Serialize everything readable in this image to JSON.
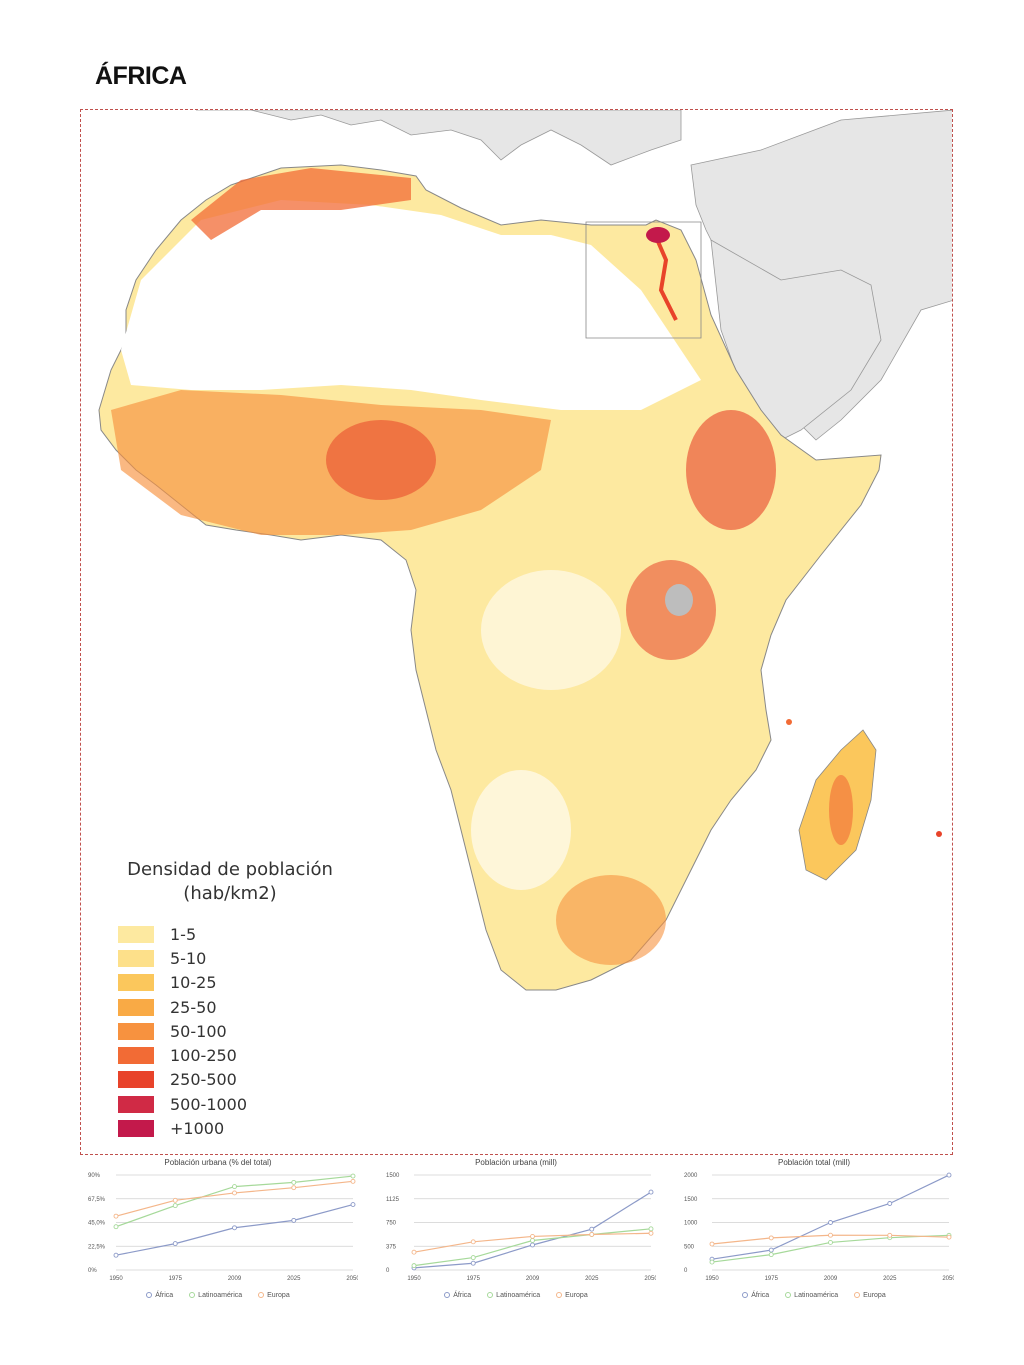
{
  "title": "ÁFRICA",
  "legend": {
    "title_line1": "Densidad de población",
    "title_line2": "(hab/km2)",
    "items": [
      {
        "label": "1-5",
        "color": "#fde9a0"
      },
      {
        "label": "5-10",
        "color": "#fde08a"
      },
      {
        "label": "10-25",
        "color": "#fbc75c"
      },
      {
        "label": "25-50",
        "color": "#f9aa45"
      },
      {
        "label": "50-100",
        "color": "#f7923f"
      },
      {
        "label": "100-250",
        "color": "#f26b35"
      },
      {
        "label": "250-500",
        "color": "#e8432a"
      },
      {
        "label": "500-1000",
        "color": "#d02a45"
      },
      {
        "label": "+1000",
        "color": "#c3194b"
      }
    ]
  },
  "colors": {
    "frame": "#c0504d",
    "land_other": "#e6e6e6",
    "series_africa": "#8c9ac8",
    "series_latam": "#a6d99a",
    "series_europa": "#f4b68a"
  },
  "charts": [
    {
      "title": "Población urbana (% del total)",
      "legend": [
        "África",
        "Latinoamérica",
        "Europa"
      ],
      "chart_data": {
        "type": "line",
        "x": [
          "1950",
          "1975",
          "2009",
          "2025",
          "2050"
        ],
        "y_ticks": [
          "0%",
          "22,5%",
          "45,0%",
          "67,5%",
          "90%"
        ],
        "ylim": [
          0,
          90
        ],
        "series": [
          {
            "name": "África",
            "values": [
              14,
              25,
              40,
              47,
              62
            ]
          },
          {
            "name": "Latinoamérica",
            "values": [
              41,
              61,
              79,
              83,
              89
            ]
          },
          {
            "name": "Europa",
            "values": [
              51,
              66,
              73,
              78,
              84
            ]
          }
        ]
      }
    },
    {
      "title": "Población urbana (mill)",
      "legend": [
        "África",
        "Latinoamérica",
        "Europa"
      ],
      "chart_data": {
        "type": "line",
        "x": [
          "1950",
          "1975",
          "2009",
          "2025",
          "2050"
        ],
        "y_ticks": [
          "0",
          "375",
          "750",
          "1125",
          "1500"
        ],
        "ylim": [
          0,
          1500
        ],
        "series": [
          {
            "name": "África",
            "values": [
              33,
              107,
              395,
              645,
              1230
            ]
          },
          {
            "name": "Latinoamérica",
            "values": [
              69,
              196,
              466,
              561,
              650
            ]
          },
          {
            "name": "Europa",
            "values": [
              281,
              445,
              530,
              561,
              580
            ]
          }
        ]
      }
    },
    {
      "title": "Población total (mill)",
      "legend": [
        "África",
        "Latinoamérica",
        "Europa"
      ],
      "chart_data": {
        "type": "line",
        "x": [
          "1950",
          "1975",
          "2009",
          "2025",
          "2050"
        ],
        "y_ticks": [
          "0",
          "500",
          "1000",
          "1500",
          "2000"
        ],
        "ylim": [
          0,
          2000
        ],
        "series": [
          {
            "name": "África",
            "values": [
              227,
              419,
              1000,
              1400,
              1998
            ]
          },
          {
            "name": "Latinoamérica",
            "values": [
              167,
              324,
              580,
              680,
              730
            ]
          },
          {
            "name": "Europa",
            "values": [
              547,
              676,
              732,
              730,
              691
            ]
          }
        ]
      }
    }
  ]
}
